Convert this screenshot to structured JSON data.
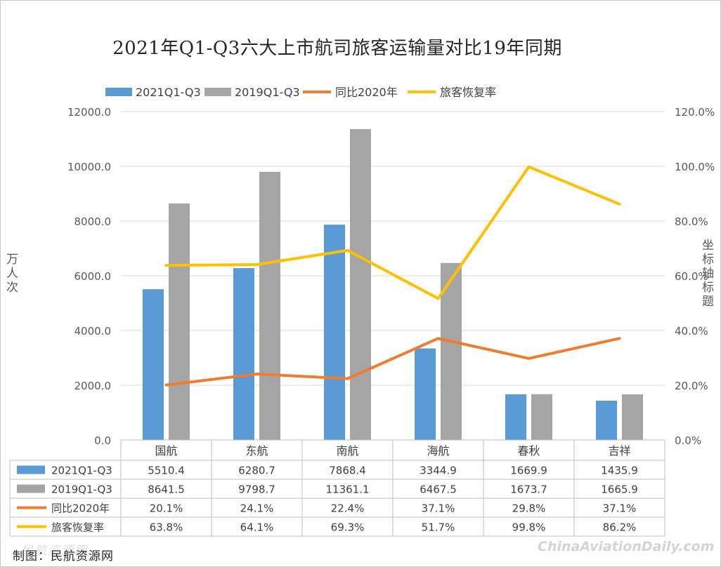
{
  "source_note": "制图：民航资源网",
  "watermark_left": "民航资源网",
  "watermark_right": "ChinaAviationDaily.com",
  "chart_data": {
    "type": "bar",
    "title": "2021年Q1-Q3六大上市航司旅客运输量对比19年同期",
    "ylabel": "万人次",
    "y2label": "坐标轴标题",
    "ylim": [
      0,
      12000
    ],
    "y2lim": [
      0,
      1.2
    ],
    "y_ticks": [
      "0.0",
      "2000.0",
      "4000.0",
      "6000.0",
      "8000.0",
      "10000.0",
      "12000.0"
    ],
    "y2_ticks": [
      "0.0%",
      "20.0%",
      "40.0%",
      "60.0%",
      "80.0%",
      "100.0%",
      "120.0%"
    ],
    "categories": [
      "国航",
      "东航",
      "南航",
      "海航",
      "春秋",
      "吉祥"
    ],
    "legend_position": "top",
    "gridlines": true,
    "data_table": true,
    "series": [
      {
        "name": "2021Q1-Q3",
        "kind": "bar",
        "axis": "left",
        "color": "#5b9bd5",
        "values": [
          5510.4,
          6280.7,
          7868.4,
          3344.9,
          1669.9,
          1435.9
        ],
        "labels": [
          "5510.4",
          "6280.7",
          "7868.4",
          "3344.9",
          "1669.9",
          "1435.9"
        ]
      },
      {
        "name": "2019Q1-Q3",
        "kind": "bar",
        "axis": "left",
        "color": "#a5a5a5",
        "values": [
          8641.5,
          9798.7,
          11361.1,
          6467.5,
          1673.7,
          1665.9
        ],
        "labels": [
          "8641.5",
          "9798.7",
          "11361.1",
          "6467.5",
          "1673.7",
          "1665.9"
        ]
      },
      {
        "name": "同比2020年",
        "kind": "line",
        "axis": "right",
        "color": "#ed7d31",
        "values": [
          0.201,
          0.241,
          0.224,
          0.371,
          0.298,
          0.371
        ],
        "labels": [
          "20.1%",
          "24.1%",
          "22.4%",
          "37.1%",
          "29.8%",
          "37.1%"
        ]
      },
      {
        "name": "旅客恢复率",
        "kind": "line",
        "axis": "right",
        "color": "#ffc000",
        "values": [
          0.638,
          0.641,
          0.693,
          0.517,
          0.998,
          0.862
        ],
        "labels": [
          "63.8%",
          "64.1%",
          "69.3%",
          "51.7%",
          "99.8%",
          "86.2%"
        ]
      }
    ]
  }
}
